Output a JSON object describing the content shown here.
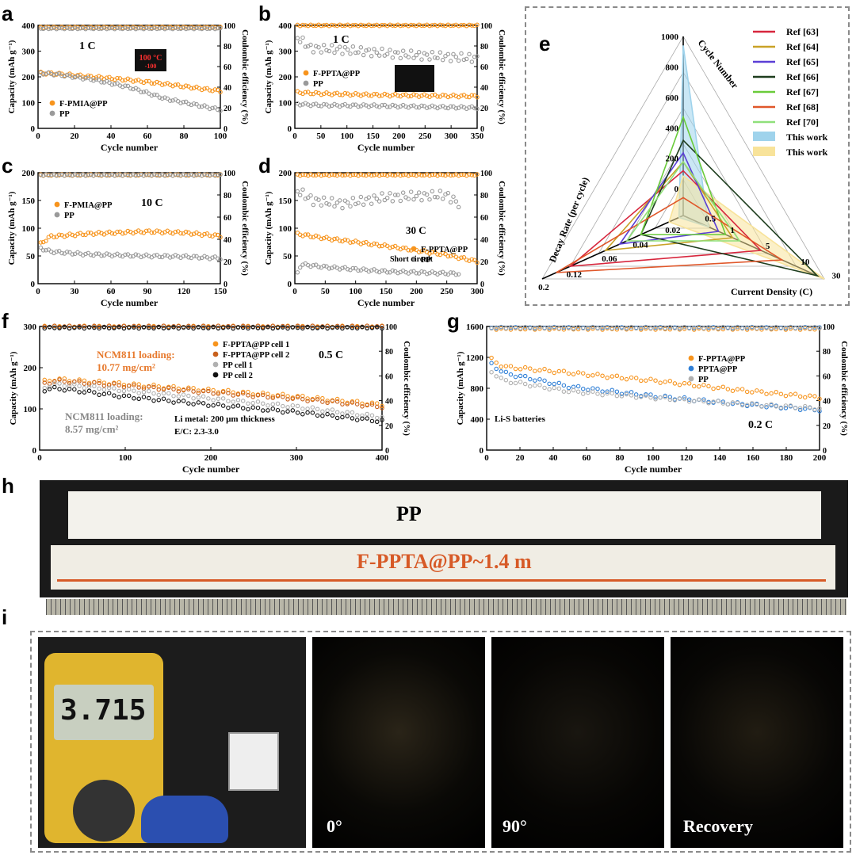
{
  "panels": {
    "a": {
      "letter": "a",
      "xlim": [
        0,
        100
      ],
      "xticks": [
        0,
        20,
        40,
        60,
        80,
        100
      ],
      "ylim": [
        0,
        400
      ],
      "yticks": [
        0,
        100,
        200,
        300,
        400
      ],
      "y2lim": [
        0,
        100
      ],
      "y2ticks": [
        0,
        20,
        40,
        60,
        80,
        100
      ],
      "xlabel": "Cycle number",
      "ylabel": "Capacity (mAh g⁻¹)",
      "y2label": "Coulombic efficiency (%)",
      "rate_label": "1 C",
      "series": [
        {
          "name": "F-PMIA@PP",
          "color": "#f7941d",
          "cap_pts": [
            [
              1,
              215
            ],
            [
              10,
              212
            ],
            [
              30,
              200
            ],
            [
              50,
              188
            ],
            [
              70,
              172
            ],
            [
              100,
              145
            ]
          ],
          "ce": 98
        },
        {
          "name": "PP",
          "color": "#9a9a9a",
          "cap_pts": [
            [
              1,
              215
            ],
            [
              10,
              210
            ],
            [
              30,
              190
            ],
            [
              50,
              160
            ],
            [
              70,
              115
            ],
            [
              100,
              72
            ]
          ],
          "ce": 97
        }
      ],
      "inset": {
        "display": "100 °C",
        "sub": "-100"
      }
    },
    "b": {
      "letter": "b",
      "xlim": [
        0,
        350
      ],
      "xticks": [
        0,
        50,
        100,
        150,
        200,
        250,
        300,
        350
      ],
      "ylim": [
        0,
        400
      ],
      "yticks": [
        0,
        100,
        200,
        300,
        400
      ],
      "y2lim": [
        0,
        100
      ],
      "y2ticks": [
        0,
        20,
        40,
        60,
        80,
        100
      ],
      "xlabel": "Cycle number",
      "ylabel": "Capacity (mAh g⁻¹)",
      "y2label": "Coulombic efficiency (%)",
      "rate_label": "1 C",
      "series": [
        {
          "name": "F-PPTA@PP",
          "color": "#f7941d",
          "cap_pts": [
            [
              1,
              140
            ],
            [
              50,
              135
            ],
            [
              150,
              130
            ],
            [
              250,
              127
            ],
            [
              350,
              125
            ]
          ],
          "ce": 100
        },
        {
          "name": "PP",
          "color": "#9a9a9a",
          "cap_pts": [
            [
              1,
              95
            ],
            [
              50,
              90
            ],
            [
              150,
              88
            ],
            [
              250,
              84
            ],
            [
              350,
              80
            ]
          ],
          "ce_pts": [
            [
              1,
              90
            ],
            [
              30,
              78
            ],
            [
              100,
              76
            ],
            [
              200,
              72
            ],
            [
              350,
              68
            ]
          ]
        }
      ]
    },
    "c": {
      "letter": "c",
      "xlim": [
        0,
        150
      ],
      "xticks": [
        0,
        30,
        60,
        90,
        120,
        150
      ],
      "ylim": [
        0,
        200
      ],
      "yticks": [
        0,
        50,
        100,
        150,
        200
      ],
      "y2lim": [
        0,
        100
      ],
      "y2ticks": [
        0,
        20,
        40,
        60,
        80,
        100
      ],
      "xlabel": "Cycle number",
      "ylabel": "Capacity (mAh g⁻¹)",
      "y2label": "Coulombic efficiency (%)",
      "rate_label": "10 C",
      "series": [
        {
          "name": "F-PMIA@PP",
          "color": "#f7941d",
          "cap_pts": [
            [
              1,
              70
            ],
            [
              10,
              85
            ],
            [
              40,
              90
            ],
            [
              90,
              94
            ],
            [
              120,
              92
            ],
            [
              150,
              86
            ]
          ],
          "ce": 98
        },
        {
          "name": "PP",
          "color": "#9a9a9a",
          "cap_pts": [
            [
              1,
              65
            ],
            [
              10,
              58
            ],
            [
              40,
              53
            ],
            [
              90,
              50
            ],
            [
              120,
              49
            ],
            [
              150,
              46
            ]
          ],
          "ce": 98
        }
      ]
    },
    "d": {
      "letter": "d",
      "xlim": [
        0,
        300
      ],
      "xticks": [
        0,
        50,
        100,
        150,
        200,
        250,
        300
      ],
      "ylim": [
        0,
        200
      ],
      "yticks": [
        0,
        50,
        100,
        150,
        200
      ],
      "y2lim": [
        0,
        100
      ],
      "y2ticks": [
        0,
        20,
        40,
        60,
        80,
        100
      ],
      "xlabel": "Cycle number",
      "ylabel": "Capacity (mAh g⁻¹)",
      "y2label": "Coulombic efficiency (%)",
      "rate_label": "30 C",
      "annotation": "Short circuit",
      "series": [
        {
          "name": "F-PPTA@PP",
          "color": "#f7941d",
          "cap_pts": [
            [
              1,
              90
            ],
            [
              50,
              82
            ],
            [
              150,
              68
            ],
            [
              250,
              52
            ],
            [
              300,
              40
            ]
          ],
          "ce": 98
        },
        {
          "name": "PP",
          "color": "#9a9a9a",
          "cap_pts": [
            [
              1,
              10
            ],
            [
              10,
              35
            ],
            [
              50,
              30
            ],
            [
              150,
              22
            ],
            [
              270,
              18
            ]
          ],
          "ce_pts": [
            [
              1,
              85
            ],
            [
              30,
              75
            ],
            [
              80,
              72
            ],
            [
              150,
              78
            ],
            [
              250,
              80
            ],
            [
              270,
              72
            ]
          ]
        }
      ]
    },
    "f": {
      "letter": "f",
      "xlim": [
        0,
        400
      ],
      "xticks": [
        0,
        100,
        200,
        300,
        400
      ],
      "ylim": [
        0,
        300
      ],
      "yticks": [
        0,
        100,
        200,
        300
      ],
      "y2lim": [
        0,
        100
      ],
      "y2ticks": [
        0,
        20,
        40,
        60,
        80,
        100
      ],
      "xlabel": "Cycle number",
      "ylabel": "Capacity (mAh g⁻¹)",
      "y2label": "Coulombic efficiency (%)",
      "rate_label": "0.5 C",
      "notes": [
        "NCM811 loading:",
        "10.77 mg/cm²",
        "NCM811 loading:",
        "8.57 mg/cm²",
        "Li metal: 200 µm thickness",
        "E/C: 2.3-3.0"
      ],
      "series": [
        {
          "name": "F-PPTA@PP cell 1",
          "color": "#f7941d",
          "cap_pts": [
            [
              1,
              165
            ],
            [
              20,
              172
            ],
            [
              100,
              160
            ],
            [
              200,
              145
            ],
            [
              300,
              130
            ],
            [
              400,
              110
            ]
          ],
          "ce": 100
        },
        {
          "name": "F-PPTA@PP cell 2",
          "color": "#c8601c",
          "cap_pts": [
            [
              1,
              160
            ],
            [
              20,
              168
            ],
            [
              100,
              156
            ],
            [
              200,
              140
            ],
            [
              300,
              125
            ],
            [
              400,
              105
            ]
          ],
          "ce": 100
        },
        {
          "name": "PP cell 1",
          "color": "#b0b0b0",
          "cap_pts": [
            [
              1,
              150
            ],
            [
              20,
              160
            ],
            [
              100,
              145
            ],
            [
              200,
              125
            ],
            [
              300,
              105
            ],
            [
              400,
              80
            ]
          ],
          "ce": 99
        },
        {
          "name": "PP cell 2",
          "color": "#111111",
          "cap_pts": [
            [
              1,
              145
            ],
            [
              20,
              150
            ],
            [
              100,
              130
            ],
            [
              200,
              110
            ],
            [
              300,
              92
            ],
            [
              400,
              70
            ]
          ],
          "ce": 99
        }
      ]
    },
    "g": {
      "letter": "g",
      "xlim": [
        0,
        200
      ],
      "xticks": [
        0,
        20,
        40,
        60,
        80,
        100,
        120,
        140,
        160,
        180,
        200
      ],
      "ylim": [
        0,
        1600
      ],
      "yticks": [
        0,
        400,
        800,
        1200,
        1600
      ],
      "y2lim": [
        0,
        100
      ],
      "y2ticks": [
        0,
        20,
        40,
        60,
        80,
        100
      ],
      "xlabel": "Cycle number",
      "ylabel": "Capacity (mAh g⁻¹)",
      "y2label": "Coulombic efficiency (%)",
      "rate_label": "0.2 C",
      "annotation": "Li-S batteries",
      "series": [
        {
          "name": "F-PPTA@PP",
          "color": "#f7941d",
          "cap_pts": [
            [
              1,
              1200
            ],
            [
              10,
              1080
            ],
            [
              50,
              1000
            ],
            [
              100,
              900
            ],
            [
              150,
              780
            ],
            [
              200,
              680
            ]
          ],
          "ce": 98
        },
        {
          "name": "PPTA@PP",
          "color": "#2f7fd6",
          "cap_pts": [
            [
              1,
              1150
            ],
            [
              10,
              1000
            ],
            [
              50,
              820
            ],
            [
              100,
              700
            ],
            [
              150,
              600
            ],
            [
              200,
              520
            ]
          ],
          "ce": 99
        },
        {
          "name": "PP",
          "color": "#b0b0b0",
          "cap_pts": [
            [
              1,
              1050
            ],
            [
              10,
              900
            ],
            [
              50,
              760
            ],
            [
              100,
              680
            ],
            [
              150,
              600
            ],
            [
              200,
              540
            ]
          ],
          "ce": 99
        }
      ]
    }
  },
  "radar": {
    "letter": "e",
    "axis_titles": [
      "Cycle Number",
      "Current Density (C)",
      "Decay Rate (per cycle)"
    ],
    "cycle_ticks": [
      "1000",
      "800",
      "600",
      "400",
      "200",
      "0"
    ],
    "current_ticks": [
      "0.5",
      "1",
      "5",
      "10",
      "30"
    ],
    "decay_ticks": [
      "0.02",
      "0.04",
      "0.06",
      "0.12",
      "0.2"
    ],
    "legend": [
      {
        "label": "Ref [63]",
        "color": "#d7263d"
      },
      {
        "label": "Ref [64]",
        "color": "#c9a227"
      },
      {
        "label": "Ref [65]",
        "color": "#5b3fd6"
      },
      {
        "label": "Ref [66]",
        "color": "#1e3d1e"
      },
      {
        "label": "Ref [67]",
        "color": "#6acb3a"
      },
      {
        "label": "Ref [68]",
        "color": "#e0572a"
      },
      {
        "label": "Ref [70]",
        "color": "#8fe07a"
      },
      {
        "label": "This work",
        "color": "#9fd3ec"
      },
      {
        "label": "This work",
        "color": "#f8e39a"
      }
    ]
  },
  "photo_h": {
    "letter": "h",
    "label_pp": "PP",
    "label_f": "F-PPTA@PP~1.4 m"
  },
  "photo_i": {
    "letter": "i",
    "display": "3.715",
    "labels": [
      "0°",
      "90°",
      "Recovery"
    ]
  }
}
